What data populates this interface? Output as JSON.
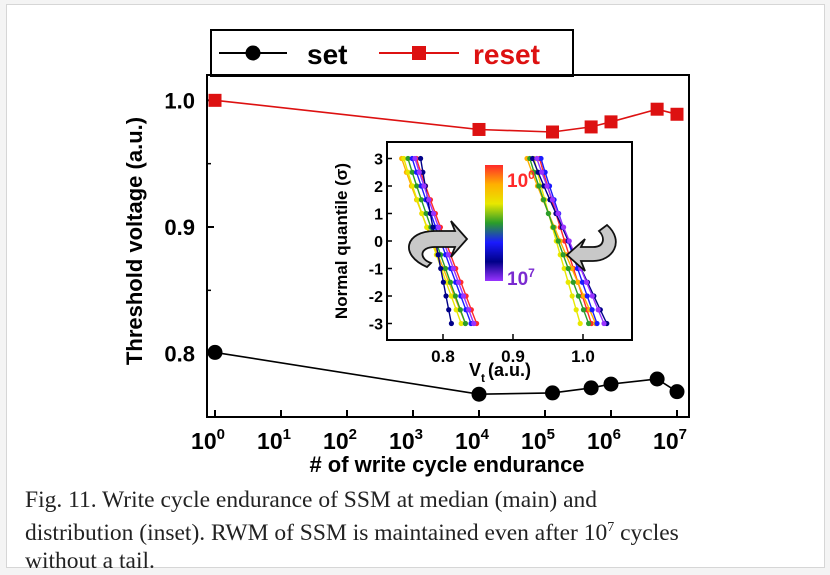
{
  "chart_data": {
    "main": {
      "type": "line",
      "xscale": "log",
      "xlim": [
        1,
        10000000
      ],
      "ylim": [
        0.75,
        1.02
      ],
      "x_tick_exponents": [
        "0",
        "1",
        "2",
        "3",
        "4",
        "5",
        "6",
        "7"
      ],
      "y_ticks": [
        "0.8",
        "0.9",
        "1.0"
      ],
      "xlabel": "# of write cycle endurance",
      "ylabel": "Threshold voltage (a.u.)",
      "legend": "top",
      "series": [
        {
          "name": "set",
          "color": "#000000",
          "marker": "circle",
          "x": [
            1,
            10000,
            130000,
            500000,
            1000000,
            5000000,
            10000000
          ],
          "y": [
            0.801,
            0.768,
            0.769,
            0.773,
            0.776,
            0.78,
            0.77
          ]
        },
        {
          "name": "reset",
          "color": "#dd1111",
          "marker": "square",
          "x": [
            1,
            10000,
            130000,
            500000,
            1000000,
            5000000,
            10000000
          ],
          "y": [
            1.0,
            0.977,
            0.975,
            0.979,
            0.983,
            0.993,
            0.989
          ]
        }
      ]
    },
    "inset": {
      "type": "line",
      "xlim": [
        0.72,
        1.07
      ],
      "ylim": [
        -3.6,
        3.6
      ],
      "x_ticks": [
        "0.8",
        "0.9",
        "1.0"
      ],
      "y_ticks": [
        "3",
        "2",
        "1",
        "0",
        "-1",
        "-2",
        "-3"
      ],
      "xlabel_main": "V",
      "xlabel_sub": "t",
      "xlabel_unit": "(a.u.)",
      "ylabel": "Normal quantile (σ)",
      "colorbar_top": "10",
      "colorbar_top_exp": "0",
      "colorbar_bottom": "10",
      "colorbar_bottom_exp": "7",
      "colors": [
        "#ff2a2a",
        "#ffb000",
        "#e8e800",
        "#2a9d2a",
        "#1a1aff",
        "#000088",
        "#9933ff"
      ],
      "left_x0": [
        0.762,
        0.741,
        0.744,
        0.75,
        0.756,
        0.768,
        0.76
      ],
      "left_x1": [
        0.848,
        0.832,
        0.826,
        0.832,
        0.84,
        0.812,
        0.844
      ],
      "right_x0": [
        1.012,
        1.018,
        0.996,
        1.008,
        1.02,
        1.034,
        1.03
      ],
      "right_x1": [
        0.938,
        0.92,
        0.93,
        0.924,
        0.94,
        0.928,
        0.934
      ]
    }
  },
  "caption": {
    "line1": "Fig. 11. Write cycle endurance of SSM at median (main) and",
    "line2": "distribution (inset). RWM of SSM is maintained even after 10",
    "line2_sup": "7",
    "line2_end": " cycles",
    "line3": "without a tail."
  }
}
